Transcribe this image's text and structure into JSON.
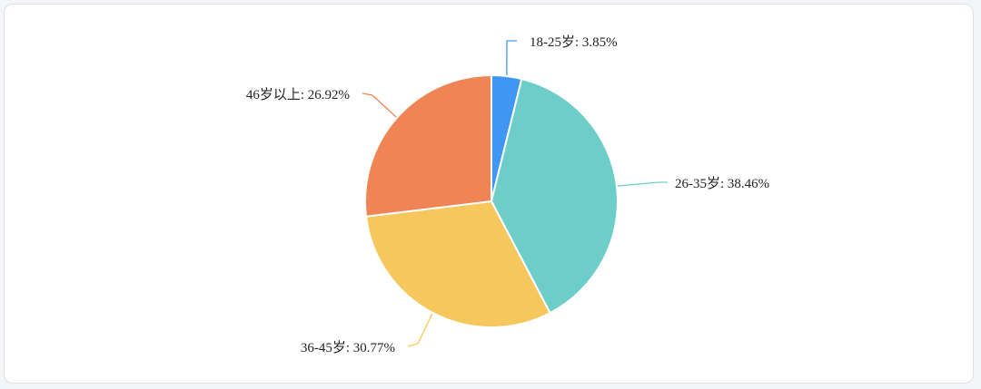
{
  "chart_data": {
    "type": "pie",
    "start_angle_deg": 0,
    "direction": "clockwise",
    "slices": [
      {
        "label": "18-25岁: 3.85%",
        "category": "18-25岁",
        "value": 3.85,
        "color": "#4096f3"
      },
      {
        "label": "26-35岁: 38.46%",
        "category": "26-35岁",
        "value": 38.46,
        "color": "#6ccdc9"
      },
      {
        "label": "36-45岁: 30.77%",
        "category": "36-45岁",
        "value": 30.77,
        "color": "#f5c75c"
      },
      {
        "label": "46岁以上: 26.92%",
        "category": "46岁以上",
        "value": 26.92,
        "color": "#ef8455"
      }
    ]
  }
}
